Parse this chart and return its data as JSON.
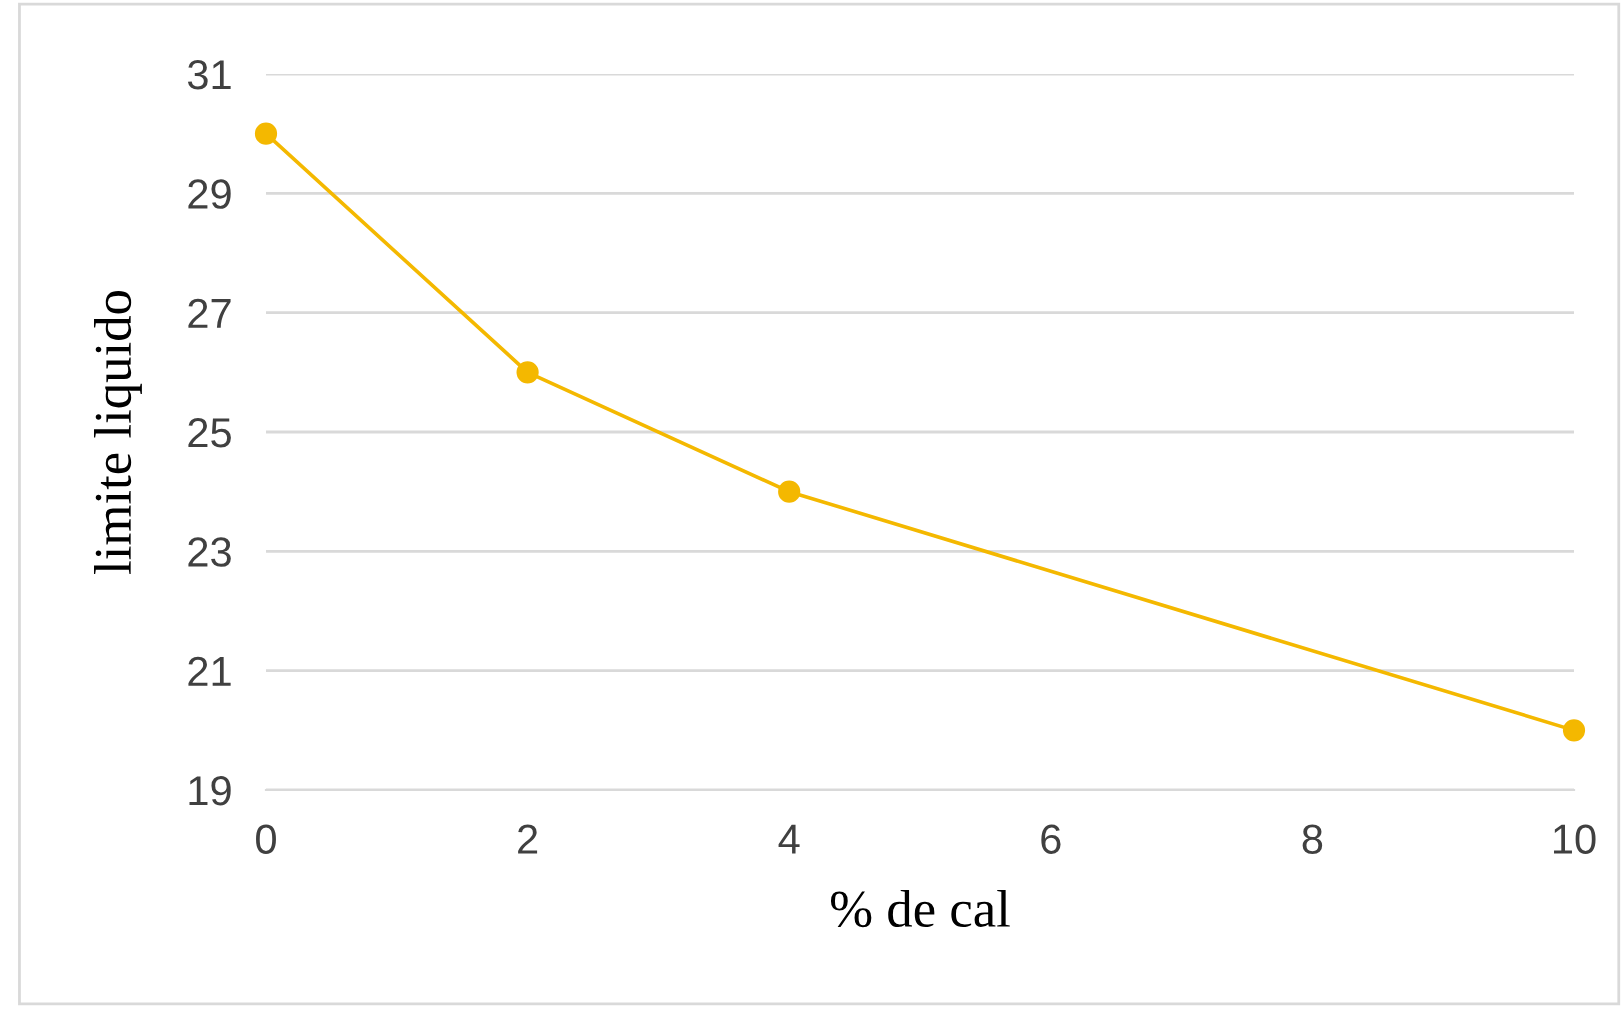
{
  "chart_data": {
    "type": "line",
    "xlabel": "% de cal",
    "ylabel": "limite liquido",
    "x": [
      0,
      2,
      4,
      10
    ],
    "series": [
      {
        "color": "#f4b800",
        "values": [
          30,
          26,
          24,
          20
        ]
      }
    ],
    "xlim": [
      0,
      10
    ],
    "xticks": [
      0,
      2,
      4,
      6,
      8,
      10
    ],
    "ylim": [
      19,
      31
    ],
    "yticks": [
      19,
      21,
      23,
      25,
      27,
      29,
      31
    ],
    "grid": "y",
    "marker": "circle",
    "line_style": "solid"
  }
}
